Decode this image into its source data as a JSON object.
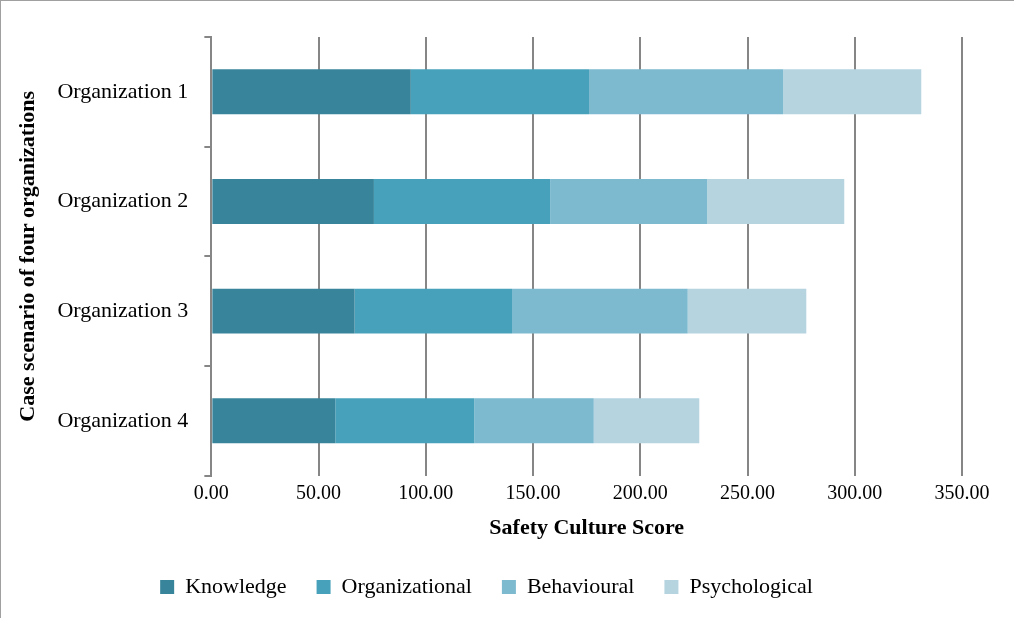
{
  "chart_data": {
    "type": "bar",
    "orientation": "horizontal",
    "stacked": true,
    "categories": [
      "Organization 1",
      "Organization 2",
      "Organization 3",
      "Organization 4"
    ],
    "series": [
      {
        "name": "Knowledge",
        "color": "#38849a",
        "values": [
          93.0,
          75.8,
          66.8,
          57.8
        ]
      },
      {
        "name": "Organizational",
        "color": "#48a1bb",
        "values": [
          83.1,
          82.2,
          73.4,
          64.8
        ]
      },
      {
        "name": "Behavioural",
        "color": "#7db9cf",
        "values": [
          90.5,
          73.2,
          81.9,
          55.7
        ]
      },
      {
        "name": "Psychological",
        "color": "#b5d4e0",
        "values": [
          64.4,
          63.9,
          55.3,
          49.2
        ]
      }
    ],
    "xlim": [
      0,
      350
    ],
    "xticks": [
      {
        "value": 0,
        "label": "0.00"
      },
      {
        "value": 50,
        "label": "50.00"
      },
      {
        "value": 100,
        "label": "100.00"
      },
      {
        "value": 150,
        "label": "150.00"
      },
      {
        "value": 200,
        "label": "200.00"
      },
      {
        "value": 250,
        "label": "250.00"
      },
      {
        "value": 300,
        "label": "300.00"
      },
      {
        "value": 350,
        "label": "350.00"
      }
    ],
    "xlabel": "Safety Culture Score",
    "ylabel": "Case scenario of four organizations",
    "grid": "x",
    "legend": "bottom"
  }
}
